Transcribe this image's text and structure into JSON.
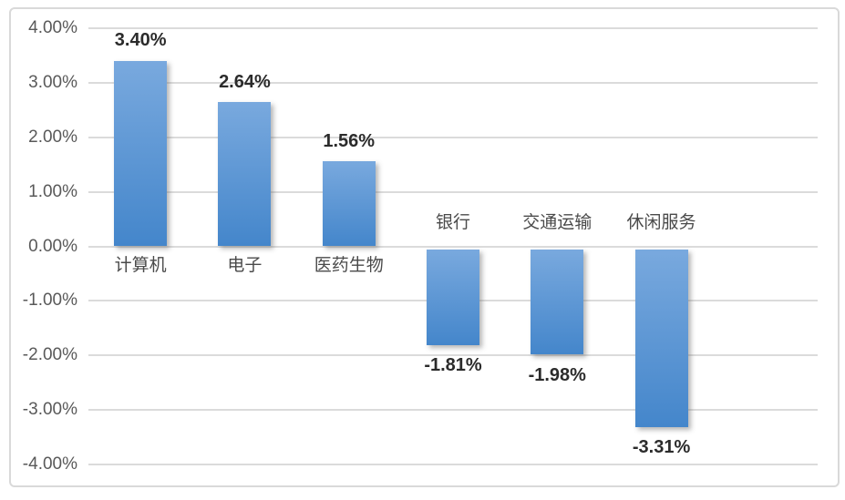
{
  "chart_data": {
    "type": "bar",
    "categories": [
      "计算机",
      "电子",
      "医药生物",
      "银行",
      "交通运输",
      "休闲服务"
    ],
    "values": [
      3.4,
      2.64,
      1.56,
      -1.81,
      -1.98,
      -3.31
    ],
    "value_labels": [
      "3.40%",
      "2.64%",
      "1.56%",
      "-1.81%",
      "-1.98%",
      "-3.31%"
    ],
    "y_tick_labels": [
      "4.00%",
      "3.00%",
      "2.00%",
      "1.00%",
      "0.00%",
      "-1.00%",
      "-2.00%",
      "-3.00%",
      "-4.00%"
    ],
    "y_tick_values": [
      4,
      3,
      2,
      1,
      0,
      -1,
      -2,
      -3,
      -4
    ],
    "ylim": [
      -4,
      4
    ],
    "xlabel": "",
    "ylabel": "",
    "grid": "horizontal",
    "legend": "none",
    "label_placement": {
      "positive_bars": "value label above bar, category label below zero line",
      "negative_bars": "value label below bar, category label above zero line"
    },
    "colors": {
      "bar_gradient_top": "#79A9DE",
      "bar_gradient_bottom": "#4486CB",
      "gridline": "#DBDBDB",
      "frame_border": "#D9D9D9",
      "tick_label": "#595959",
      "category_label": "#4A4A4A",
      "value_label": "#2B2B2B",
      "background": "#FFFFFF"
    }
  }
}
